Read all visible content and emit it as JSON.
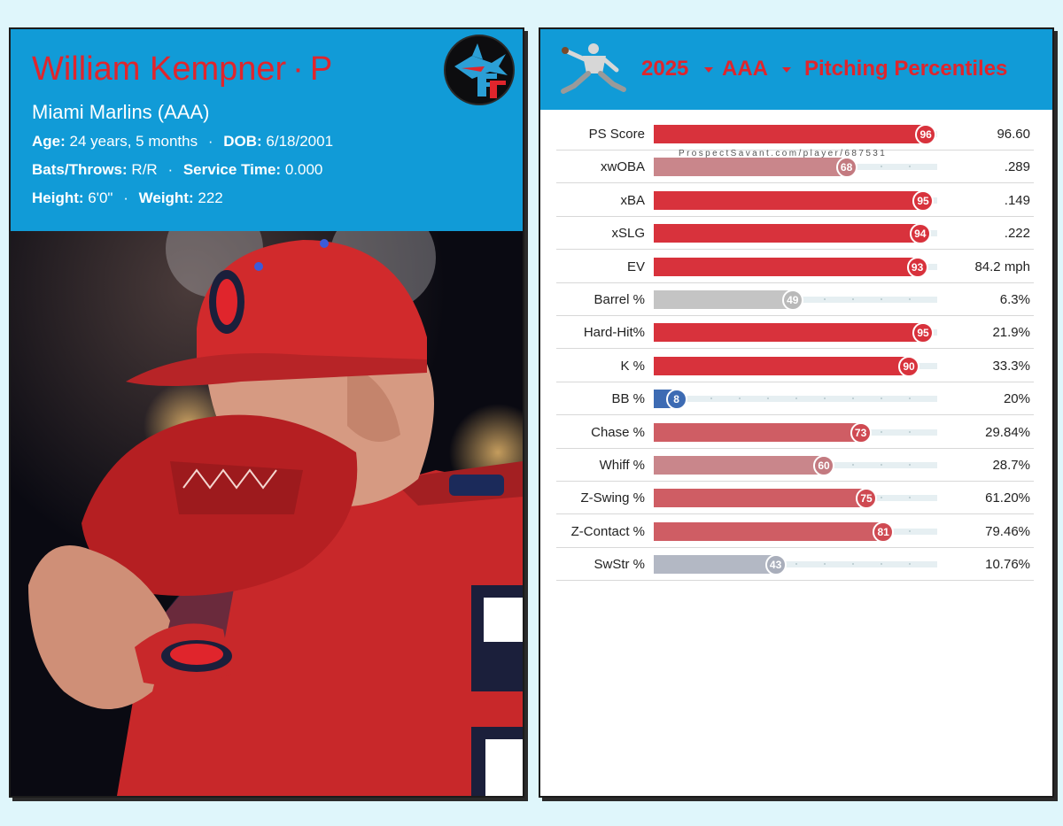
{
  "player": {
    "name": "William Kempner",
    "position": "P",
    "team": "Miami Marlins (AAA)",
    "age_label": "Age:",
    "age": "24 years, 5 months",
    "dob_label": "DOB:",
    "dob": "6/18/2001",
    "bats_label": "Bats/Throws:",
    "bats": "R/R",
    "service_label": "Service Time:",
    "service": "0.000",
    "height_label": "Height:",
    "height": "6'0\"",
    "weight_label": "Weight:",
    "weight": "222"
  },
  "header": {
    "year": "2025",
    "level": "AAA",
    "title": "Pitching Percentiles"
  },
  "watermark": "ProspectSavant.com/player/687531",
  "colors": {
    "accent_blue": "#119bd7",
    "accent_red": "#e0252c",
    "background": "#dff6fb"
  },
  "chart_data": {
    "type": "bar",
    "title": "Pitching Percentiles",
    "xlim": [
      0,
      100
    ],
    "categories": [
      "PS Score",
      "xwOBA",
      "xBA",
      "xSLG",
      "EV",
      "Barrel %",
      "Hard-Hit%",
      "K %",
      "BB %",
      "Chase %",
      "Whiff %",
      "Z-Swing %",
      "Z-Contact %",
      "SwStr %"
    ],
    "series": [
      {
        "values": [
          96,
          68,
          95,
          94,
          93,
          49,
          95,
          90,
          8,
          73,
          60,
          75,
          81,
          43
        ]
      }
    ],
    "stat_values": [
      "96.60",
      ".289",
      ".149",
      ".222",
      "84.2 mph",
      "6.3%",
      "21.9%",
      "33.3%",
      "20%",
      "29.84%",
      "28.7%",
      "61.20%",
      "79.46%",
      "10.76%"
    ]
  }
}
